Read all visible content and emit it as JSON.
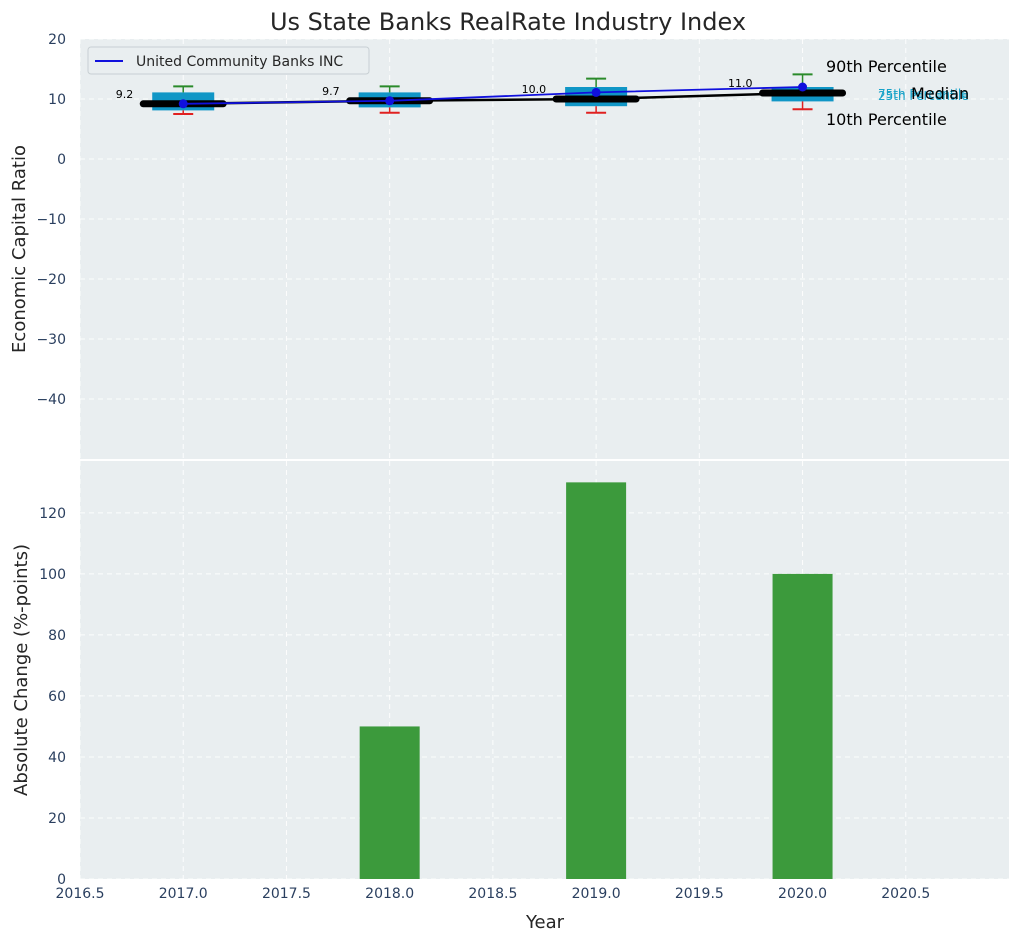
{
  "colors": {
    "background": "#e9eef0",
    "box_fill": "#1096c6",
    "whisker_top": "#2a8a2a",
    "whisker_bottom": "#e02020",
    "company_line": "#1010dd",
    "median_line": "#000000",
    "bar_fill": "#3c9a3c",
    "pct25_75": "#17a2c8"
  },
  "chart_data": [
    {
      "type": "box_line",
      "title": "Us State Banks RealRate Industry Index",
      "ylabel": "Economic Capital Ratio",
      "xlim": [
        2016.5,
        2021.0
      ],
      "ylim": [
        -50,
        20
      ],
      "yticks": [
        20,
        10,
        0,
        -10,
        -20,
        -30,
        -40
      ],
      "ytick_labels": [
        "20",
        "10",
        "0",
        "−10",
        "−20",
        "−30",
        "−40"
      ],
      "years": [
        2017,
        2018,
        2019,
        2020
      ],
      "p10": [
        7.5,
        7.7,
        7.7,
        8.3
      ],
      "p25": [
        8.1,
        8.6,
        8.8,
        9.6
      ],
      "median": [
        9.2,
        9.7,
        10.0,
        11.0
      ],
      "p75": [
        11.1,
        11.1,
        12.0,
        12.0
      ],
      "p90": [
        12.1,
        12.1,
        13.4,
        14.1
      ],
      "median_labels": [
        "9.2",
        "9.7",
        "10.0",
        "11.0"
      ],
      "company": {
        "name": "United Community Banks INC",
        "values": [
          9.2,
          9.7,
          11.1,
          12.0
        ]
      },
      "legend": [
        "United Community Banks INC"
      ],
      "legend_loc": "upper-left",
      "percentile_labels": {
        "p90": "90th Percentile",
        "median": "Median",
        "p10": "10th Percentile",
        "p75": "75th Percentile",
        "p25": "25th Percentile"
      }
    },
    {
      "type": "bar",
      "ylabel": "Absolute Change (%-points)",
      "xlabel": "Year",
      "xlim": [
        2016.5,
        2021.0
      ],
      "ylim": [
        0,
        137
      ],
      "yticks": [
        0,
        20,
        40,
        60,
        80,
        100,
        120
      ],
      "xticks": [
        2016.5,
        2017.0,
        2017.5,
        2018.0,
        2018.5,
        2019.0,
        2019.5,
        2020.0,
        2020.5
      ],
      "xtick_labels": [
        "2016.5",
        "2017.0",
        "2017.5",
        "2018.0",
        "2018.5",
        "2019.0",
        "2019.5",
        "2020.0",
        "2020.5"
      ],
      "years": [
        2017,
        2018,
        2019,
        2020
      ],
      "values": [
        0,
        50,
        130,
        100
      ]
    }
  ]
}
